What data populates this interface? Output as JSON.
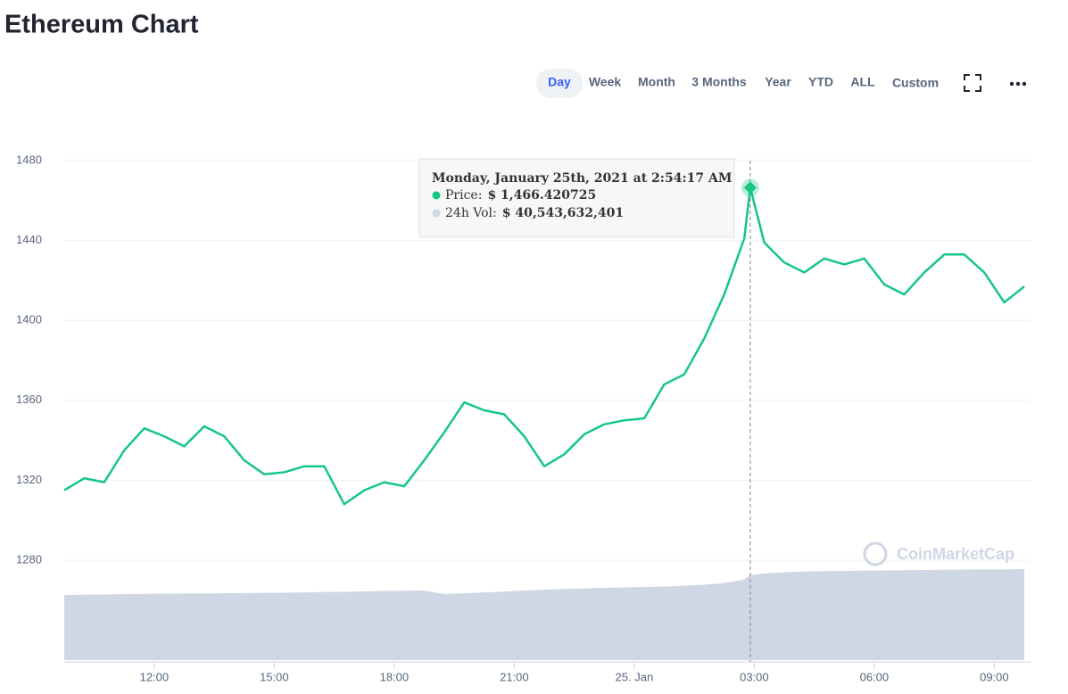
{
  "header": {
    "title": "Ethereum Chart"
  },
  "toolbar": {
    "buttons": [
      "Day",
      "Week",
      "Month",
      "3 Months",
      "Year",
      "YTD",
      "ALL",
      "Custom"
    ],
    "active": 0
  },
  "watermark": "CoinMarketCap",
  "tooltip": {
    "title": "Monday, January 25th, 2021 at 2:54:17 AM",
    "items": [
      {
        "name": "Price:",
        "text": "$ 1,466.420725",
        "color": "#16c784"
      },
      {
        "name": "24h Vol:",
        "text": "$ 40,543,632,401",
        "color": "#cfd6e4"
      }
    ],
    "point": 35
  },
  "chart_data": {
    "type": "line",
    "x": [
      9.75,
      10.25,
      10.75,
      11.25,
      11.75,
      12.25,
      12.75,
      13.25,
      13.75,
      14.25,
      14.75,
      15.25,
      15.75,
      16.25,
      16.75,
      17.25,
      17.75,
      18.25,
      18.75,
      19.25,
      19.75,
      20.25,
      20.75,
      21.25,
      21.75,
      22.25,
      22.75,
      23.25,
      23.75,
      24.25,
      24.75,
      25.25,
      25.75,
      26.25,
      26.75,
      26.9,
      27.25,
      27.75,
      28.25,
      28.75,
      29.25,
      29.75,
      30.25,
      30.75,
      31.25,
      31.75,
      32.25,
      32.75,
      33.25,
      33.75
    ],
    "series": [
      {
        "color": "#16c784",
        "values": [
          1315,
          1321,
          1319,
          1335,
          1346,
          1342,
          1337,
          1347,
          1342,
          1330,
          1323,
          1324,
          1327,
          1327,
          1308,
          1315,
          1319,
          1317,
          1330,
          1344,
          1359,
          1355,
          1353,
          1342,
          1327,
          1333,
          1343,
          1348,
          1350,
          1351,
          1368,
          1373,
          1391,
          1413,
          1441,
          1466.420725,
          1439,
          1429,
          1424,
          1431,
          1428,
          1431,
          1418,
          1413,
          1424,
          1433,
          1433,
          1424,
          1409,
          1417
        ]
      },
      {
        "color": "#cfd6e4",
        "axis": "y2",
        "values": [
          31100000000,
          31200000000,
          31300000000,
          31500000000,
          31600000000,
          31700000000,
          31800000000,
          31800000000,
          31900000000,
          32000000000,
          32100000000,
          32200000000,
          32300000000,
          32500000000,
          32600000000,
          32800000000,
          33000000000,
          33100000000,
          33200000000,
          31500000000,
          31900000000,
          32300000000,
          32700000000,
          33200000000,
          33600000000,
          34000000000,
          34200000000,
          34500000000,
          34700000000,
          34900000000,
          35100000000,
          35500000000,
          36000000000,
          36800000000,
          38500000000,
          40543632401,
          41300000000,
          41900000000,
          42300000000,
          42500000000,
          42600000000,
          42700000000,
          42800000000,
          42900000000,
          43000000000,
          43100000000,
          43200000000,
          43300000000,
          43300000000,
          43400000000
        ]
      }
    ],
    "xlim": [
      9.75,
      33.75
    ],
    "xticks": [
      {
        "value": 12,
        "label": "12:00"
      },
      {
        "value": 15,
        "label": "15:00"
      },
      {
        "value": 18,
        "label": "18:00"
      },
      {
        "value": 21,
        "label": "21:00"
      },
      {
        "value": 24,
        "label": "25. Jan"
      },
      {
        "value": 27,
        "label": "03:00"
      },
      {
        "value": 30,
        "label": "06:00"
      },
      {
        "value": 33,
        "label": "09:00"
      }
    ],
    "ylim": [
      1230,
      1490
    ],
    "yticks": [
      1280,
      1320,
      1360,
      1400,
      1440,
      1480
    ],
    "y2lim": [
      0,
      248000000000
    ],
    "grid": true
  }
}
